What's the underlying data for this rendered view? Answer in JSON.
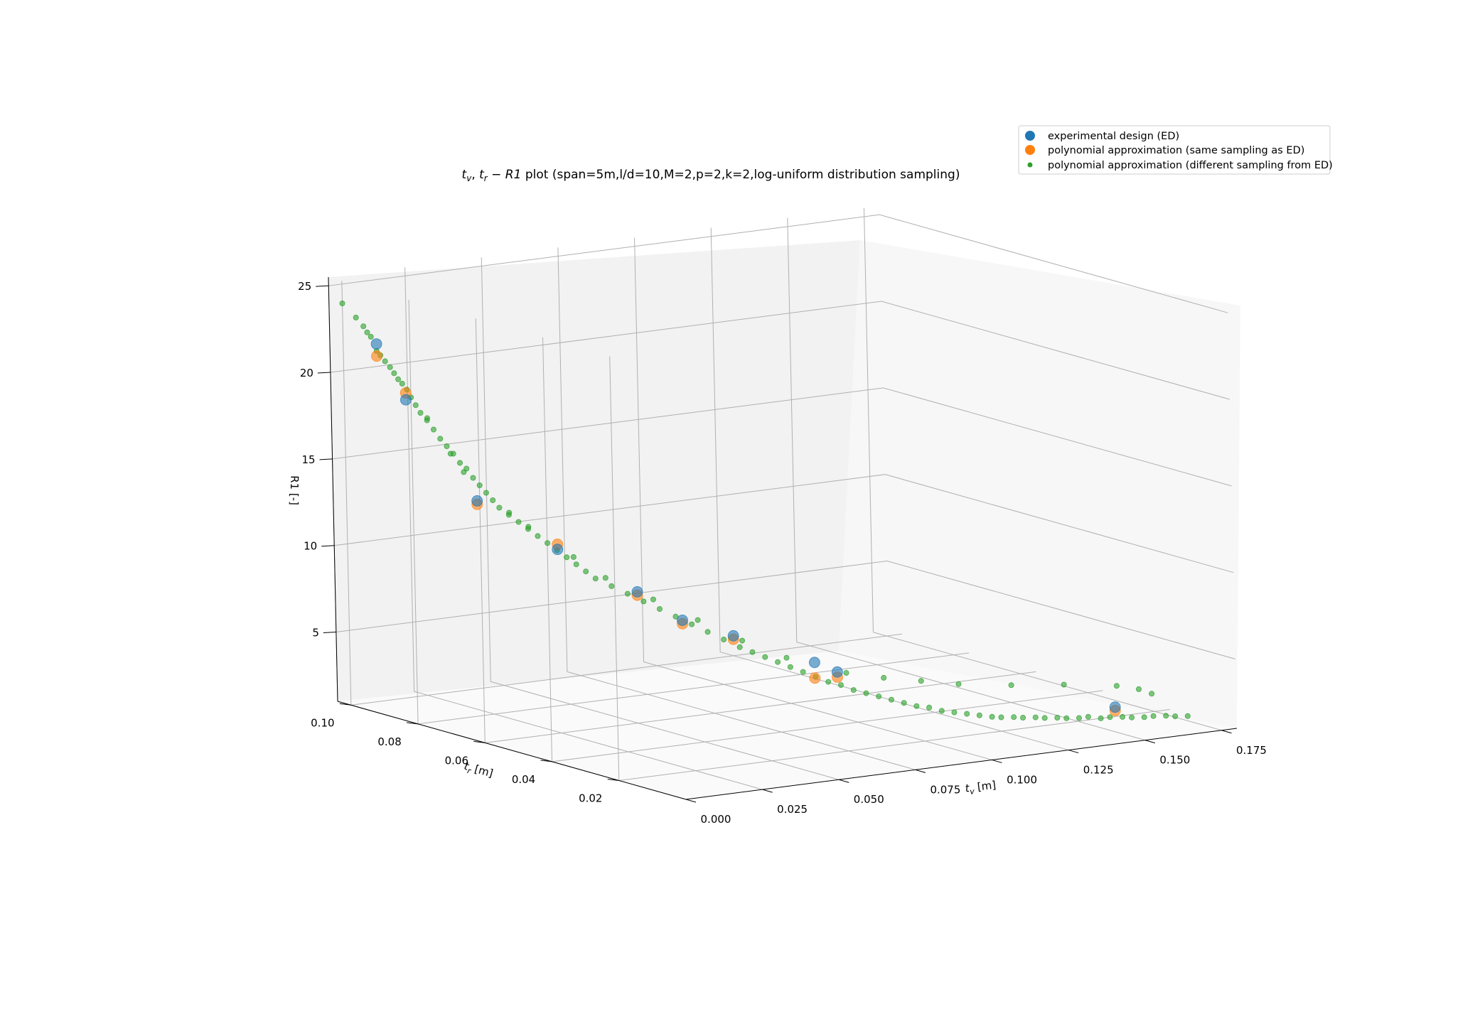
{
  "chart_data": {
    "type": "scatter",
    "projection": "3d",
    "title": {
      "math": "t",
      "sub_v": "v",
      "sep": ", ",
      "sub_r": "r",
      "minus": " − ",
      "r1": "R1",
      "rest": " plot (span=5m,l/d=10,M=2,p=2,k=2,log-uniform distribution sampling)"
    },
    "xlabel": {
      "main": "t",
      "sub": "v",
      "unit": " [m]"
    },
    "ylabel": {
      "main": "t",
      "sub": "r",
      "unit": " [m]"
    },
    "zlabel": "R1 [-]",
    "x_ticks": [
      "0.000",
      "0.025",
      "0.050",
      "0.075",
      "0.100",
      "0.125",
      "0.150",
      "0.175"
    ],
    "y_ticks": [
      "0.10",
      "0.08",
      "0.06",
      "0.04",
      "0.02"
    ],
    "z_ticks": [
      "25",
      "20",
      "15",
      "10",
      "5"
    ],
    "grid": true,
    "legend_position": "top-right",
    "colors": {
      "ed": "#1f77b4",
      "poly_same": "#ff7f0e",
      "poly_diff": "#2ca02c",
      "pane_left": "#f2f2f2",
      "pane_right": "#f7f7f7",
      "pane_floor": "#fafafa",
      "grid": "#b0b0b0"
    },
    "series": [
      {
        "name": "experimental design (ED)",
        "points": [
          [
            0.0,
            0.09,
            22.4
          ],
          [
            0.0005,
            0.082,
            19.6
          ],
          [
            0.01,
            0.07,
            14.2
          ],
          [
            0.025,
            0.06,
            11.6
          ],
          [
            0.042,
            0.052,
            9.2
          ],
          [
            0.05,
            0.046,
            7.7
          ],
          [
            0.06,
            0.04,
            6.9
          ],
          [
            0.083,
            0.037,
            5.0
          ],
          [
            0.086,
            0.033,
            4.6
          ],
          [
            0.16,
            0.018,
            1.7
          ]
        ]
      },
      {
        "name": "polynomial approximation (same sampling as ED)",
        "points": [
          [
            0.0,
            0.09,
            21.7
          ],
          [
            0.0005,
            0.082,
            20.0
          ],
          [
            0.01,
            0.07,
            14.0
          ],
          [
            0.025,
            0.06,
            11.9
          ],
          [
            0.042,
            0.052,
            9.0
          ],
          [
            0.05,
            0.046,
            7.5
          ],
          [
            0.06,
            0.04,
            6.7
          ],
          [
            0.083,
            0.037,
            4.1
          ],
          [
            0.086,
            0.033,
            4.3
          ],
          [
            0.16,
            0.018,
            1.5
          ]
        ]
      },
      {
        "name": "polynomial approximation (different sampling from ED)",
        "points": [
          [
            0.0,
            0.1,
            24.2
          ],
          [
            0.0,
            0.096,
            23.6
          ],
          [
            0.0002,
            0.094,
            23.2
          ],
          [
            0.0003,
            0.093,
            22.9
          ],
          [
            0.0004,
            0.092,
            22.7
          ],
          [
            0.0,
            0.09,
            22.0
          ],
          [
            0.0001,
            0.089,
            21.8
          ],
          [
            0.0005,
            0.088,
            21.5
          ],
          [
            0.001,
            0.087,
            21.2
          ],
          [
            0.0012,
            0.086,
            20.9
          ],
          [
            0.0014,
            0.085,
            20.6
          ],
          [
            0.0016,
            0.084,
            20.4
          ],
          [
            0.002,
            0.083,
            20.1
          ],
          [
            0.0022,
            0.082,
            19.7
          ],
          [
            0.0026,
            0.081,
            19.3
          ],
          [
            0.003,
            0.08,
            18.9
          ],
          [
            0.004,
            0.079,
            18.5
          ],
          [
            0.005,
            0.078,
            18.0
          ],
          [
            0.006,
            0.077,
            17.5
          ],
          [
            0.007,
            0.076,
            17.1
          ],
          [
            0.008,
            0.075,
            16.7
          ],
          [
            0.009,
            0.074,
            16.2
          ],
          [
            0.01,
            0.073,
            15.9
          ],
          [
            0.011,
            0.072,
            15.4
          ],
          [
            0.012,
            0.071,
            15.0
          ],
          [
            0.013,
            0.07,
            14.6
          ],
          [
            0.014,
            0.069,
            14.2
          ],
          [
            0.015,
            0.068,
            13.8
          ],
          [
            0.017,
            0.067,
            13.4
          ],
          [
            0.019,
            0.066,
            13.0
          ],
          [
            0.021,
            0.065,
            12.6
          ],
          [
            0.023,
            0.064,
            12.2
          ],
          [
            0.025,
            0.063,
            11.8
          ],
          [
            0.027,
            0.062,
            11.4
          ],
          [
            0.029,
            0.061,
            11.0
          ],
          [
            0.031,
            0.06,
            10.6
          ],
          [
            0.033,
            0.059,
            10.2
          ],
          [
            0.035,
            0.058,
            9.8
          ],
          [
            0.038,
            0.056,
            9.4
          ],
          [
            0.041,
            0.054,
            9.0
          ],
          [
            0.044,
            0.052,
            8.6
          ],
          [
            0.047,
            0.05,
            8.2
          ],
          [
            0.05,
            0.048,
            7.8
          ],
          [
            0.053,
            0.046,
            7.4
          ],
          [
            0.056,
            0.044,
            7.0
          ],
          [
            0.059,
            0.042,
            6.6
          ],
          [
            0.062,
            0.04,
            6.2
          ],
          [
            0.065,
            0.039,
            5.9
          ],
          [
            0.068,
            0.038,
            5.6
          ],
          [
            0.071,
            0.037,
            5.3
          ],
          [
            0.074,
            0.036,
            5.0
          ],
          [
            0.077,
            0.035,
            4.7
          ],
          [
            0.08,
            0.034,
            4.4
          ],
          [
            0.083,
            0.033,
            4.1
          ],
          [
            0.086,
            0.032,
            3.9
          ],
          [
            0.089,
            0.031,
            3.6
          ],
          [
            0.092,
            0.03,
            3.4
          ],
          [
            0.095,
            0.029,
            3.2
          ],
          [
            0.098,
            0.028,
            3.0
          ],
          [
            0.101,
            0.027,
            2.8
          ],
          [
            0.104,
            0.026,
            2.6
          ],
          [
            0.107,
            0.025,
            2.5
          ],
          [
            0.11,
            0.024,
            2.3
          ],
          [
            0.113,
            0.023,
            2.2
          ],
          [
            0.116,
            0.022,
            2.1
          ],
          [
            0.119,
            0.021,
            2.0
          ],
          [
            0.122,
            0.02,
            1.9
          ],
          [
            0.125,
            0.02,
            1.8
          ],
          [
            0.128,
            0.019,
            1.8
          ],
          [
            0.131,
            0.019,
            1.7
          ],
          [
            0.134,
            0.018,
            1.7
          ],
          [
            0.137,
            0.018,
            1.6
          ],
          [
            0.14,
            0.017,
            1.6
          ],
          [
            0.143,
            0.017,
            1.5
          ],
          [
            0.146,
            0.016,
            1.5
          ],
          [
            0.149,
            0.016,
            1.5
          ],
          [
            0.152,
            0.015,
            1.4
          ],
          [
            0.155,
            0.015,
            1.4
          ],
          [
            0.158,
            0.014,
            1.4
          ],
          [
            0.161,
            0.014,
            1.3
          ],
          [
            0.164,
            0.013,
            1.3
          ],
          [
            0.167,
            0.013,
            1.3
          ],
          [
            0.17,
            0.012,
            1.3
          ],
          [
            0.173,
            0.012,
            1.2
          ],
          [
            0.176,
            0.011,
            1.2
          ],
          [
            0.17,
            0.02,
            2.4
          ],
          [
            0.172,
            0.018,
            2.2
          ],
          [
            0.165,
            0.022,
            2.6
          ],
          [
            0.15,
            0.024,
            2.9
          ],
          [
            0.135,
            0.026,
            3.1
          ],
          [
            0.12,
            0.028,
            3.4
          ],
          [
            0.11,
            0.03,
            3.7
          ],
          [
            0.1,
            0.032,
            4.0
          ],
          [
            0.09,
            0.034,
            4.4
          ],
          [
            0.075,
            0.038,
            5.4
          ],
          [
            0.065,
            0.042,
            6.4
          ],
          [
            0.055,
            0.046,
            7.6
          ],
          [
            0.045,
            0.05,
            8.8
          ],
          [
            0.035,
            0.055,
            10.0
          ],
          [
            0.028,
            0.058,
            11.2
          ],
          [
            0.02,
            0.064,
            12.8
          ],
          [
            0.016,
            0.066,
            13.6
          ],
          [
            0.008,
            0.072,
            15.8
          ],
          [
            0.006,
            0.074,
            16.8
          ],
          [
            0.003,
            0.078,
            18.7
          ]
        ]
      }
    ]
  }
}
